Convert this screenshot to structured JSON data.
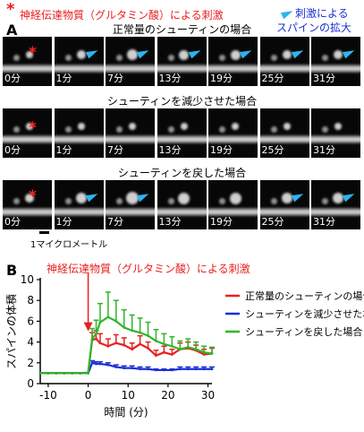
{
  "panel_a": {
    "letter": "A",
    "stim_header": "神経伝達物質（グルタミン酸）による刺激",
    "legend_line1": "刺激による",
    "legend_line2": "スパインの拡大",
    "rows": [
      {
        "title": "正常量のシューティンの場合"
      },
      {
        "title": "シューティンを減少させた場合"
      },
      {
        "title": "シューティンを戻した場合"
      }
    ],
    "time_labels": [
      "0分",
      "1分",
      "7分",
      "13分",
      "19分",
      "25分",
      "31分"
    ],
    "scale_bar_label": "1マイクロメートル"
  },
  "panel_b": {
    "letter": "B",
    "stim_label": "神経伝達物質（グルタミン酸）による刺激"
  },
  "chart_data": {
    "type": "line",
    "xlabel": "時間 (分)",
    "ylabel": "スパインの体積",
    "xlim": [
      -12,
      31
    ],
    "ylim": [
      0,
      10
    ],
    "xticks": [
      -10,
      0,
      10,
      20,
      30
    ],
    "yticks": [
      0,
      2,
      4,
      6,
      8,
      10
    ],
    "legend_position": "upper-right",
    "series": [
      {
        "name": "正常量のシューティンの場合",
        "color": "#e8201f",
        "x": [
          -12,
          -10,
          -8,
          -6,
          -4,
          -2,
          0,
          1,
          2,
          3,
          5,
          7,
          9,
          11,
          13,
          15,
          17,
          19,
          21,
          23,
          25,
          27,
          29,
          31
        ],
        "y": [
          1,
          1,
          1,
          1,
          1,
          1,
          1.05,
          4.2,
          4.3,
          3.9,
          3.6,
          3.9,
          3.7,
          3.3,
          3.8,
          3.4,
          2.7,
          3.0,
          2.8,
          3.3,
          3.4,
          3.2,
          2.8,
          2.9
        ],
        "err": [
          0,
          0,
          0,
          0,
          0,
          0,
          0,
          0.7,
          0.8,
          0.9,
          0.7,
          0.8,
          0.7,
          0.6,
          0.8,
          0.6,
          0.5,
          0.6,
          0.5,
          0.6,
          0.6,
          0.5,
          0.5,
          0.5
        ]
      },
      {
        "name": "シューティンを減少させた場合",
        "color": "#1a2fd6",
        "x": [
          -12,
          -10,
          -8,
          -6,
          -4,
          -2,
          0,
          1,
          2,
          3,
          5,
          7,
          9,
          11,
          13,
          15,
          17,
          19,
          21,
          23,
          25,
          27,
          29,
          31
        ],
        "y": [
          1,
          1,
          1,
          1,
          1,
          1,
          1,
          2.0,
          1.9,
          1.9,
          1.8,
          1.6,
          1.5,
          1.5,
          1.4,
          1.4,
          1.3,
          1.3,
          1.3,
          1.4,
          1.4,
          1.4,
          1.4,
          1.4
        ],
        "err": [
          0,
          0,
          0,
          0,
          0,
          0,
          0,
          0.2,
          0.2,
          0.2,
          0.2,
          0.2,
          0.2,
          0.2,
          0.2,
          0.2,
          0.1,
          0.1,
          0.1,
          0.2,
          0.2,
          0.2,
          0.2,
          0.2
        ]
      },
      {
        "name": "シューティンを戻した場合",
        "color": "#2fb52a",
        "x": [
          -12,
          -10,
          -8,
          -6,
          -4,
          -2,
          0,
          1,
          2,
          3,
          5,
          7,
          9,
          11,
          13,
          15,
          17,
          19,
          21,
          23,
          25,
          27,
          29,
          31
        ],
        "y": [
          1,
          1,
          1,
          1,
          1,
          1,
          1,
          4.3,
          4.8,
          5.9,
          6.4,
          6.0,
          5.4,
          5.1,
          4.9,
          4.6,
          4.1,
          3.8,
          3.6,
          3.3,
          3.5,
          3.3,
          3.0,
          2.9
        ],
        "err": [
          0,
          0,
          0,
          0,
          0,
          0,
          0,
          1.0,
          1.3,
          1.8,
          2.4,
          2.0,
          1.7,
          1.5,
          1.4,
          1.3,
          1.1,
          1.0,
          0.9,
          0.8,
          0.8,
          0.7,
          0.6,
          0.6
        ]
      }
    ]
  }
}
